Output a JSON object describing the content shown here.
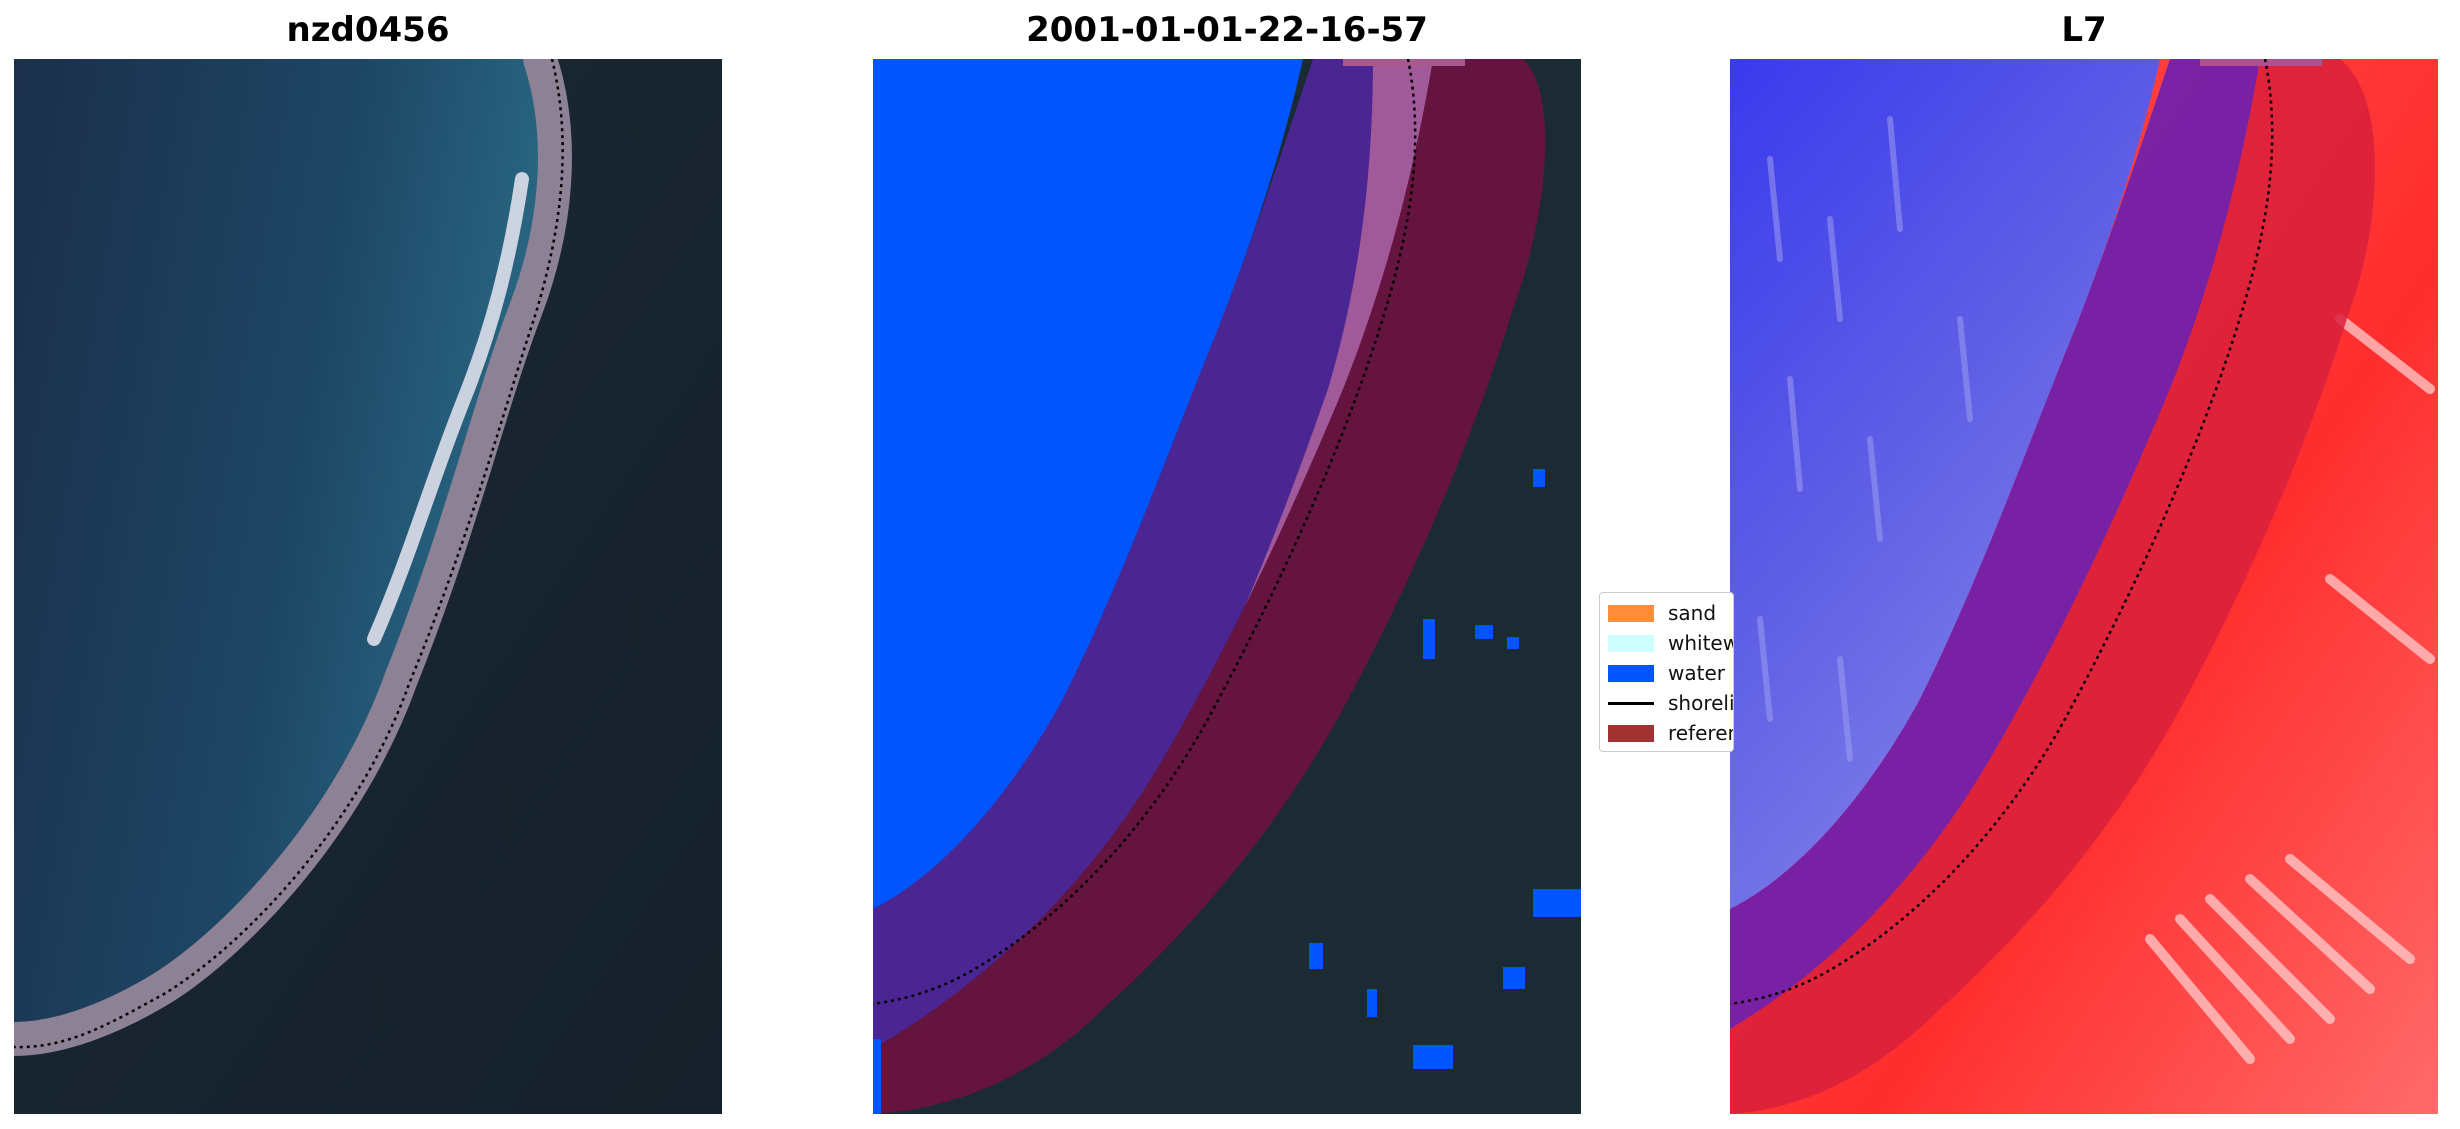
{
  "panels": {
    "rgb": {
      "title": "nzd0456"
    },
    "classified": {
      "title": "2001-01-01-22-16-57"
    },
    "index": {
      "title": "L7"
    }
  },
  "legend": {
    "items": [
      {
        "label": "sand",
        "color": "#ff8c3a"
      },
      {
        "label": "whitewater",
        "color": "#ccfffd"
      },
      {
        "label": "water",
        "color": "#0055ff"
      },
      {
        "label": "shoreline",
        "color": "#000000"
      },
      {
        "label": "reference shoreline buffer",
        "color": "#a03232"
      }
    ]
  }
}
